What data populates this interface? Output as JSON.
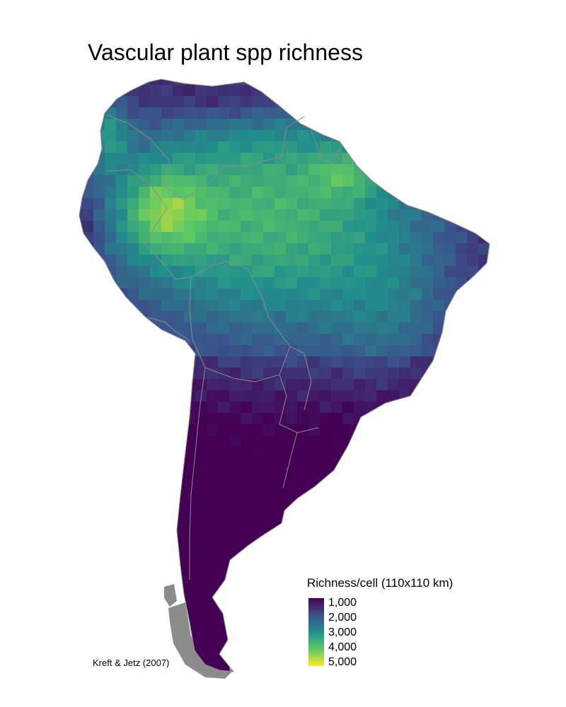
{
  "title": "Vascular plant spp richness",
  "credit": "Kreft & Jetz (2007)",
  "legend": {
    "title": "Richness/cell (110x110 km)",
    "ticks": [
      "1,000",
      "2,000",
      "3,000",
      "4,000",
      "5,000"
    ],
    "min": 500,
    "max": 5200,
    "colormap": [
      "#440154",
      "#3b528b",
      "#21908c",
      "#5dc863",
      "#fde725"
    ]
  },
  "colors": {
    "border": "#8c8c8c",
    "no_data": "#8c8c8c",
    "background": "#ffffff"
  }
}
